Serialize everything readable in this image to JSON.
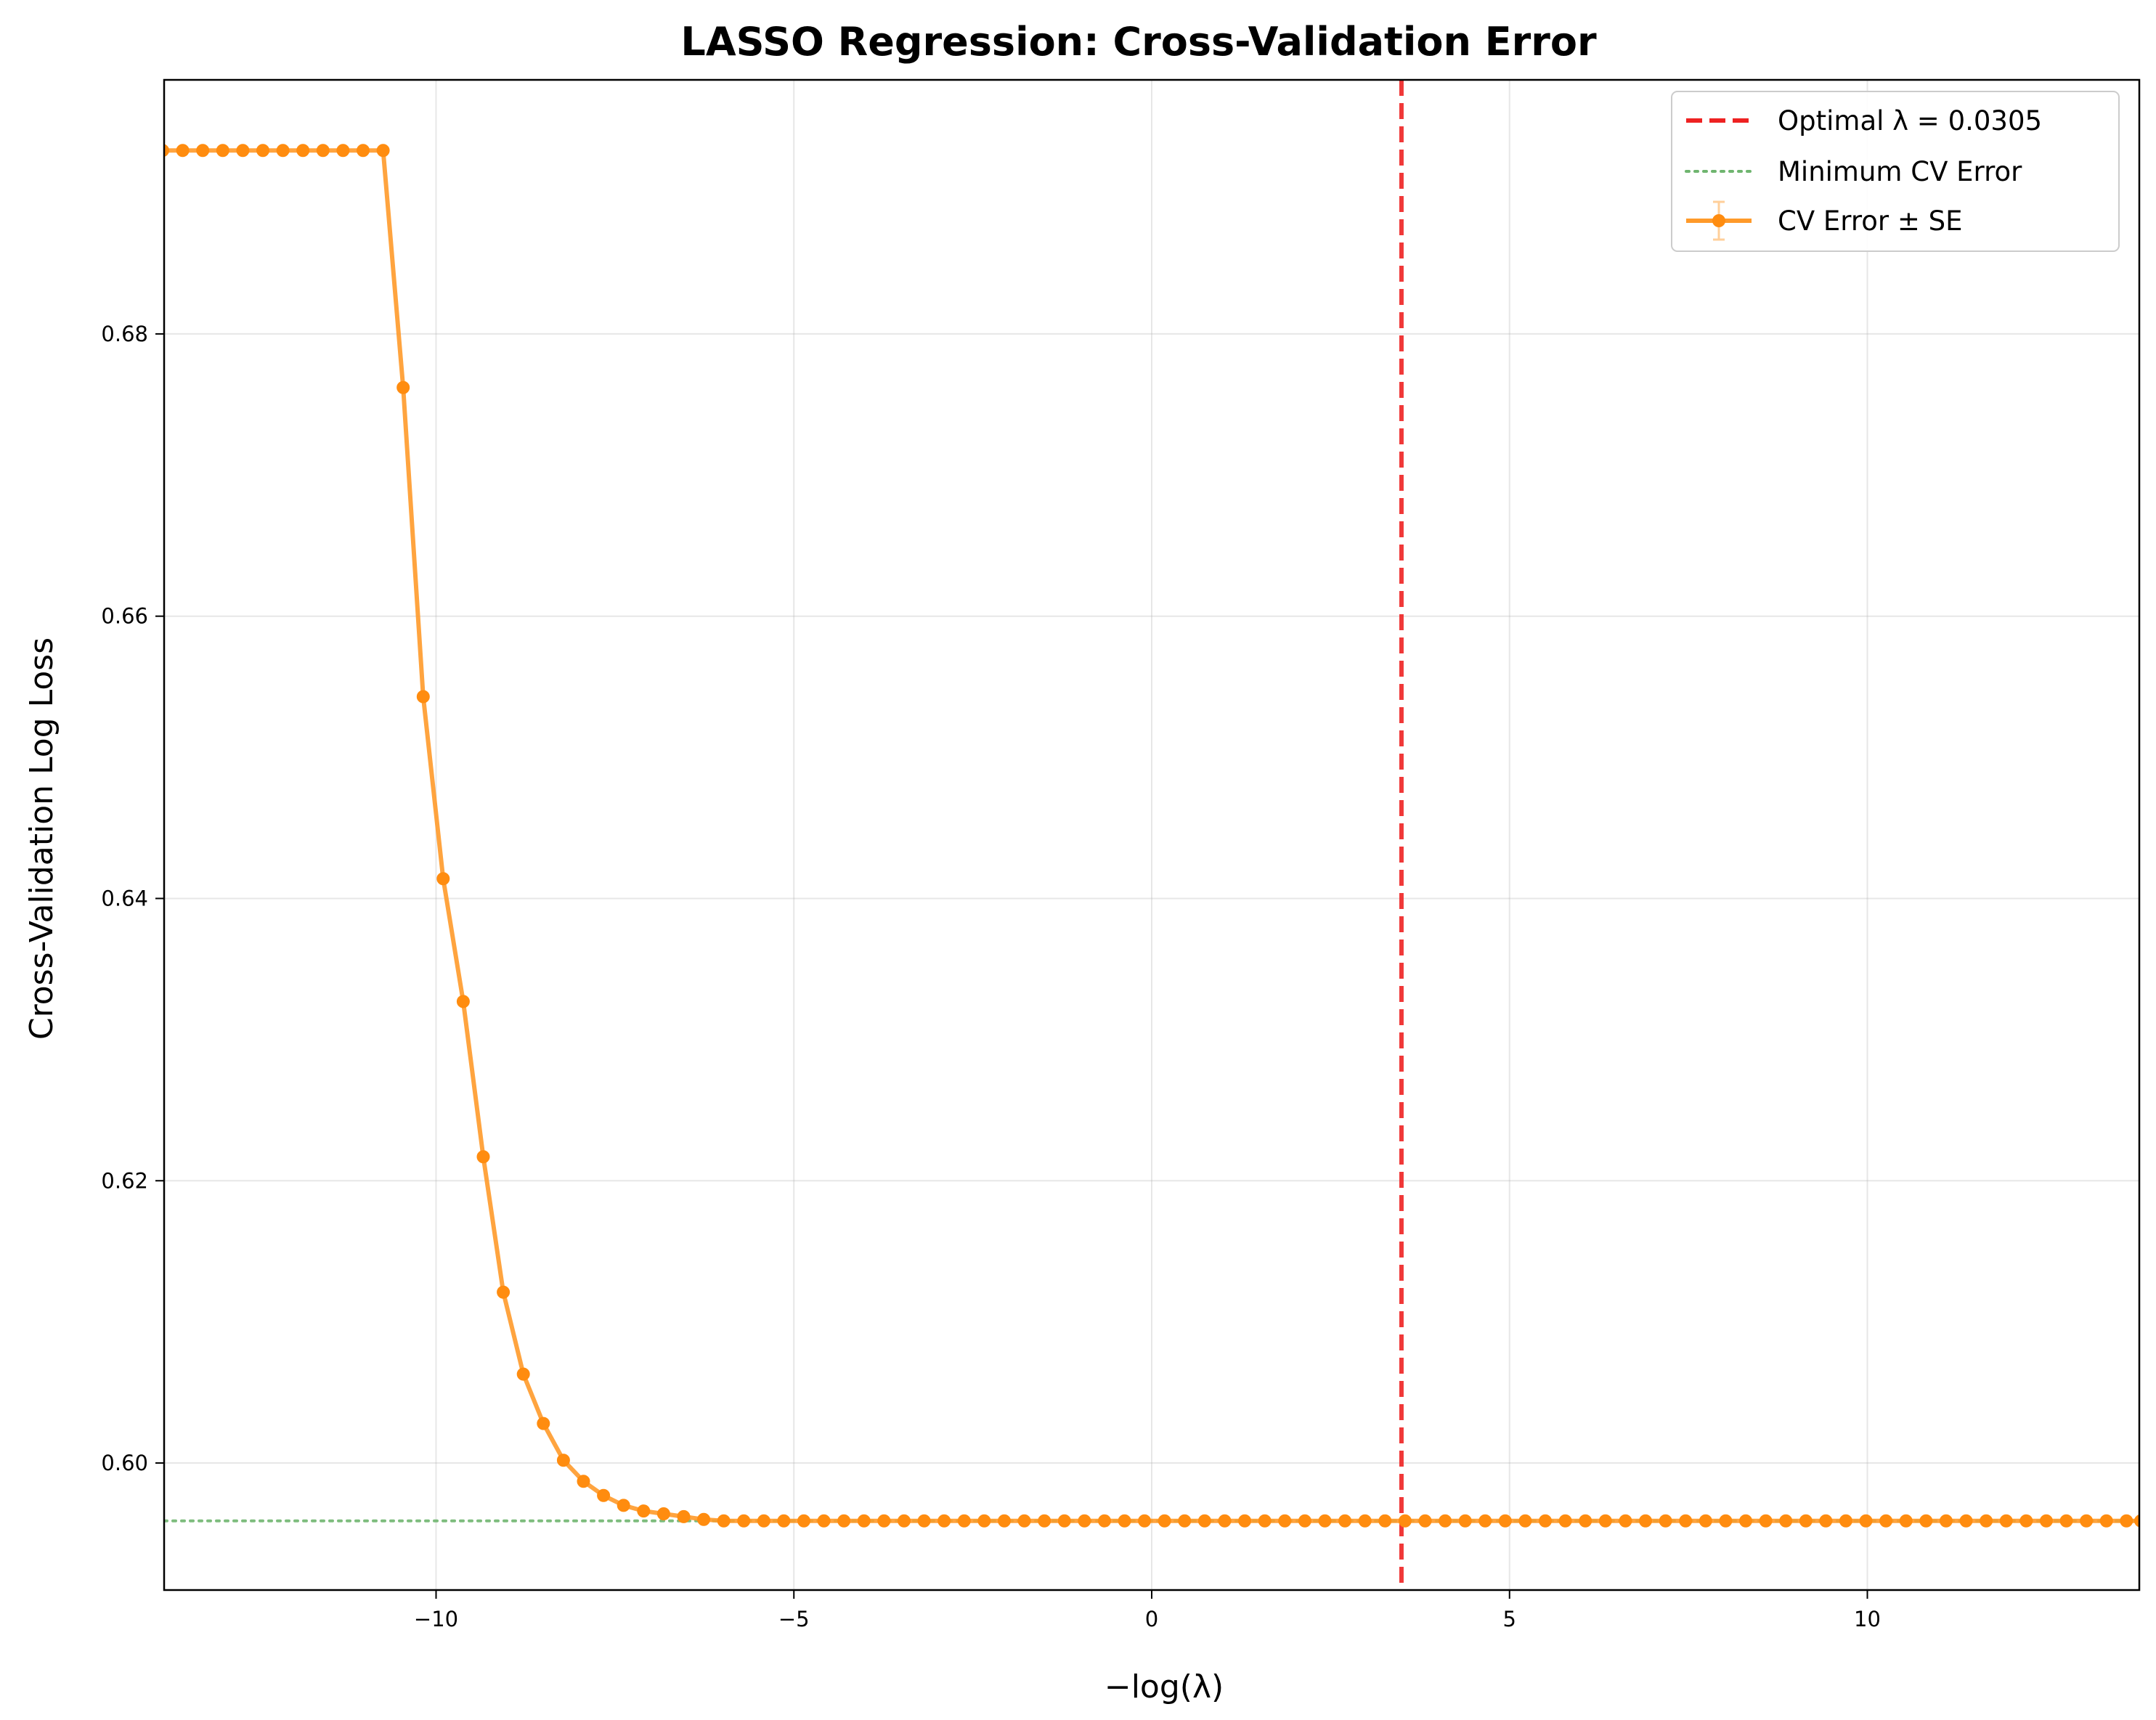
{
  "chart_data": {
    "type": "line",
    "title": "LASSO Regression: Cross-Validation Error",
    "xlabel": "−log(λ)",
    "ylabel": "Cross-Validation Log Loss",
    "xlim": [
      -13.8,
      13.8
    ],
    "ylim": [
      0.591,
      0.698
    ],
    "xticks": [
      -10,
      -5,
      0,
      5,
      10
    ],
    "xtick_labels": [
      "−10",
      "−5",
      "0",
      "5",
      "10"
    ],
    "yticks": [
      0.6,
      0.62,
      0.64,
      0.66,
      0.68
    ],
    "ytick_labels": [
      "0.60",
      "0.62",
      "0.64",
      "0.66",
      "0.68"
    ],
    "grid": true,
    "legend_position": "top-right",
    "legend": [
      {
        "label": "Optimal λ = 0.0305",
        "color": "#ee2222",
        "style": "dashed"
      },
      {
        "label": "Minimum CV Error",
        "color": "#6fb56f",
        "style": "dotted"
      },
      {
        "label": "CV Error ± SE",
        "color": "#ff9a2a",
        "style": "line-marker"
      }
    ],
    "optimal_x": 3.49,
    "min_cv_error": 0.5959,
    "series": [
      {
        "name": "CV Error ± SE",
        "color": "#ff9a2a",
        "x": [
          -13.82,
          -13.54,
          -13.26,
          -12.98,
          -12.7,
          -12.42,
          -12.14,
          -11.86,
          -11.58,
          -11.3,
          -11.02,
          -10.74,
          -10.46,
          -10.18,
          -9.9,
          -9.62,
          -9.34,
          -9.06,
          -8.78,
          -8.5,
          -8.22,
          -7.94,
          -7.66,
          -7.38,
          -7.1,
          -6.82,
          -6.54,
          -6.26,
          -5.98,
          -5.7,
          -5.42,
          -5.14,
          -4.86,
          -4.58,
          -4.3,
          -4.02,
          -3.74,
          -3.46,
          -3.18,
          -2.9,
          -2.62,
          -2.34,
          -2.06,
          -1.78,
          -1.5,
          -1.22,
          -0.94,
          -0.66,
          -0.38,
          -0.1,
          0.18,
          0.46,
          0.74,
          1.02,
          1.3,
          1.58,
          1.86,
          2.14,
          2.42,
          2.7,
          2.98,
          3.26,
          3.54,
          3.82,
          4.1,
          4.38,
          4.66,
          4.94,
          5.22,
          5.5,
          5.78,
          6.06,
          6.34,
          6.62,
          6.9,
          7.18,
          7.46,
          7.74,
          8.02,
          8.3,
          8.58,
          8.86,
          9.14,
          9.42,
          9.7,
          9.98,
          10.26,
          10.54,
          10.82,
          11.1,
          11.38,
          11.66,
          11.94,
          12.22,
          12.5,
          12.78,
          13.06,
          13.34,
          13.62,
          13.82
        ],
        "y": [
          0.693,
          0.693,
          0.693,
          0.693,
          0.693,
          0.693,
          0.693,
          0.693,
          0.693,
          0.693,
          0.693,
          0.693,
          0.6762,
          0.6543,
          0.6414,
          0.6327,
          0.6217,
          0.6121,
          0.6063,
          0.6028,
          0.6002,
          0.5987,
          0.5977,
          0.597,
          0.5966,
          0.5964,
          0.5962,
          0.596,
          0.5959,
          0.5959,
          0.5959,
          0.5959,
          0.5959,
          0.5959,
          0.5959,
          0.5959,
          0.5959,
          0.5959,
          0.5959,
          0.5959,
          0.5959,
          0.5959,
          0.5959,
          0.5959,
          0.5959,
          0.5959,
          0.5959,
          0.5959,
          0.5959,
          0.5959,
          0.5959,
          0.5959,
          0.5959,
          0.5959,
          0.5959,
          0.5959,
          0.5959,
          0.5959,
          0.5959,
          0.5959,
          0.5959,
          0.5959,
          0.5959,
          0.5959,
          0.5959,
          0.5959,
          0.5959,
          0.5959,
          0.5959,
          0.5959,
          0.5959,
          0.5959,
          0.5959,
          0.5959,
          0.5959,
          0.5959,
          0.5959,
          0.5959,
          0.5959,
          0.5959,
          0.5959,
          0.5959,
          0.5959,
          0.5959,
          0.5959,
          0.5959,
          0.5959,
          0.5959,
          0.5959,
          0.5959,
          0.5959,
          0.5959,
          0.5959,
          0.5959,
          0.5959,
          0.5959,
          0.5959,
          0.5959,
          0.5959,
          0.5959
        ]
      }
    ]
  }
}
